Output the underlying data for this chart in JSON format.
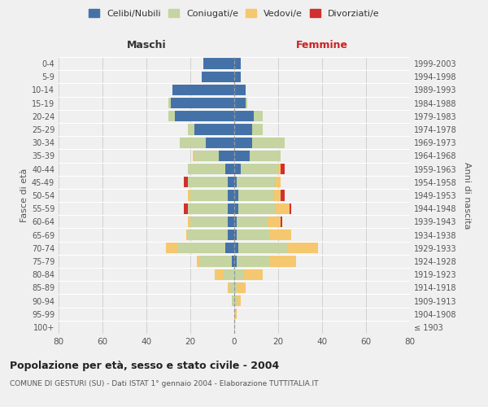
{
  "age_groups": [
    "100+",
    "95-99",
    "90-94",
    "85-89",
    "80-84",
    "75-79",
    "70-74",
    "65-69",
    "60-64",
    "55-59",
    "50-54",
    "45-49",
    "40-44",
    "35-39",
    "30-34",
    "25-29",
    "20-24",
    "15-19",
    "10-14",
    "5-9",
    "0-4"
  ],
  "birth_years": [
    "≤ 1903",
    "1904-1908",
    "1909-1913",
    "1914-1918",
    "1919-1923",
    "1924-1928",
    "1929-1933",
    "1934-1938",
    "1939-1943",
    "1944-1948",
    "1949-1953",
    "1954-1958",
    "1959-1963",
    "1964-1968",
    "1969-1973",
    "1974-1978",
    "1979-1983",
    "1984-1988",
    "1989-1993",
    "1994-1998",
    "1999-2003"
  ],
  "maschi": {
    "celibi": [
      0,
      0,
      0,
      0,
      0,
      1,
      4,
      3,
      3,
      3,
      3,
      3,
      4,
      7,
      13,
      18,
      27,
      29,
      28,
      15,
      14
    ],
    "coniugati": [
      0,
      0,
      1,
      2,
      5,
      15,
      22,
      18,
      17,
      18,
      17,
      18,
      17,
      11,
      12,
      3,
      3,
      1,
      0,
      0,
      0
    ],
    "vedovi": [
      0,
      0,
      0,
      1,
      4,
      1,
      5,
      1,
      1,
      0,
      1,
      0,
      0,
      1,
      0,
      0,
      0,
      0,
      0,
      0,
      0
    ],
    "divorziati": [
      0,
      0,
      0,
      0,
      0,
      0,
      0,
      0,
      0,
      2,
      0,
      2,
      0,
      0,
      0,
      0,
      0,
      0,
      0,
      0,
      0
    ]
  },
  "femmine": {
    "nubili": [
      0,
      0,
      0,
      0,
      0,
      1,
      2,
      1,
      1,
      2,
      2,
      1,
      3,
      7,
      8,
      8,
      9,
      5,
      5,
      3,
      3
    ],
    "coniugate": [
      0,
      0,
      1,
      1,
      4,
      15,
      22,
      15,
      14,
      17,
      16,
      18,
      17,
      14,
      15,
      5,
      4,
      1,
      0,
      0,
      0
    ],
    "vedove": [
      0,
      1,
      2,
      4,
      9,
      12,
      14,
      10,
      6,
      6,
      3,
      2,
      1,
      0,
      0,
      0,
      0,
      0,
      0,
      0,
      0
    ],
    "divorziate": [
      0,
      0,
      0,
      0,
      0,
      0,
      0,
      0,
      1,
      1,
      2,
      0,
      2,
      0,
      0,
      0,
      0,
      0,
      0,
      0,
      0
    ]
  },
  "colors": {
    "celibi_nubili": "#4472a8",
    "coniugati": "#c5d4a0",
    "vedovi": "#f5c76e",
    "divorziati": "#d03030"
  },
  "title": "Popolazione per età, sesso e stato civile - 2004",
  "subtitle": "COMUNE DI GESTURI (SU) - Dati ISTAT 1° gennaio 2004 - Elaborazione TUTTITALIA.IT",
  "ylabel_left": "Fasce di età",
  "ylabel_right": "Anni di nascita",
  "xlabel_left": "Maschi",
  "xlabel_right": "Femmine",
  "xlim": 80,
  "bg_color": "#f0f0f0"
}
